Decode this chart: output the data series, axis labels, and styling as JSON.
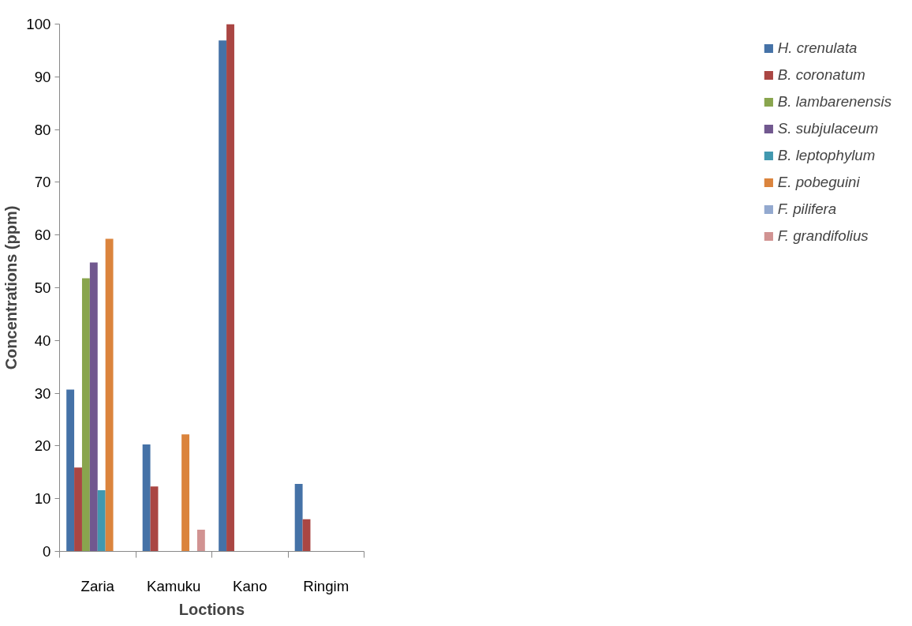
{
  "chart_data": {
    "type": "bar",
    "xlabel": "Loctions",
    "ylabel": "Concentrations (ppm)",
    "categories": [
      "Zaria",
      "Kamuku",
      "Kano",
      "Ringim"
    ],
    "ylim": [
      0,
      100
    ],
    "yticks": [
      0,
      10,
      20,
      30,
      40,
      50,
      60,
      70,
      80,
      90,
      100
    ],
    "grid": false,
    "legend": "right",
    "series": [
      {
        "name": "H. crenulata",
        "color": "#4572a7",
        "values": [
          30.7,
          20.3,
          96.9,
          12.8
        ]
      },
      {
        "name": "B. coronatum",
        "color": "#aa4643",
        "values": [
          15.9,
          12.3,
          100,
          6.1
        ]
      },
      {
        "name": "B. lambarenensis",
        "color": "#89a54e",
        "values": [
          51.8,
          null,
          null,
          null
        ]
      },
      {
        "name": "S. subjulaceum",
        "color": "#71588f",
        "values": [
          54.8,
          null,
          null,
          null
        ]
      },
      {
        "name": "B. leptophylum",
        "color": "#4198af",
        "values": [
          11.6,
          null,
          null,
          null
        ]
      },
      {
        "name": "E. pobeguini",
        "color": "#db843d",
        "values": [
          59.3,
          22.2,
          null,
          null
        ]
      },
      {
        "name": "F. pilifera",
        "color": "#93a9cf",
        "values": [
          null,
          null,
          null,
          null
        ]
      },
      {
        "name": "F. grandifolius",
        "color": "#d19392",
        "values": [
          null,
          4.1,
          null,
          null
        ]
      }
    ]
  }
}
